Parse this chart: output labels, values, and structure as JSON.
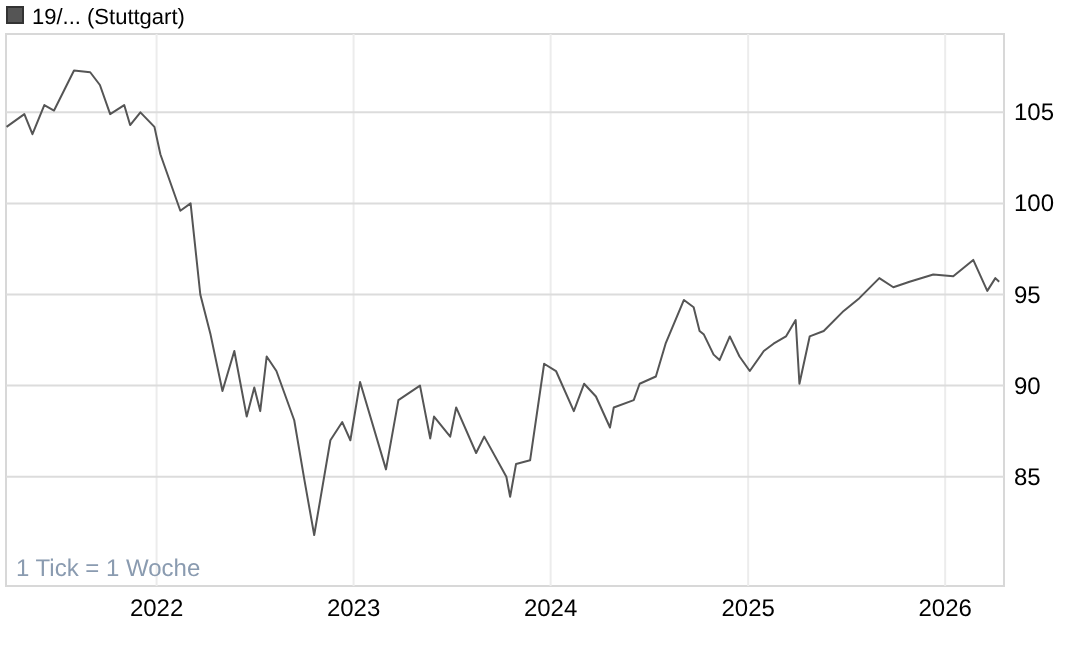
{
  "chart_data": {
    "type": "line",
    "annotations": [
      "1 Tick = 1 Woche"
    ],
    "legend": "top left",
    "grid": true,
    "marker": "none",
    "line_style": "solid",
    "xlim": [
      "2021-03-28",
      "2026-04-20"
    ],
    "xticks": [
      "2022",
      "2023",
      "2024",
      "2025",
      "2026"
    ],
    "ylim": [
      79,
      109.3
    ],
    "yticks": [
      85,
      90,
      95,
      100,
      105
    ],
    "series": [
      {
        "name": "19/... (Stuttgart)",
        "color": "#555555",
        "x": [
          "2021-03-29",
          "2021-05-01",
          "2021-05-16",
          "2021-06-07",
          "2021-06-25",
          "2021-08-01",
          "2021-08-31",
          "2021-09-18",
          "2021-10-07",
          "2021-11-02",
          "2021-11-13",
          "2021-12-02",
          "2021-12-28",
          "2022-01-08",
          "2022-02-14",
          "2022-03-05",
          "2022-03-23",
          "2022-04-11",
          "2022-05-03",
          "2022-05-25",
          "2022-06-17",
          "2022-07-01",
          "2022-07-12",
          "2022-07-24",
          "2022-08-11",
          "2022-09-13",
          "2022-10-02",
          "2022-10-20",
          "2022-10-31",
          "2022-11-19",
          "2022-12-11",
          "2022-12-26",
          "2023-01-13",
          "2023-03-02",
          "2023-03-25",
          "2023-05-04",
          "2023-05-23",
          "2023-05-30",
          "2023-06-29",
          "2023-07-10",
          "2023-08-16",
          "2023-08-31",
          "2023-10-11",
          "2023-10-18",
          "2023-10-29",
          "2023-11-24",
          "2023-12-20",
          "2024-01-11",
          "2024-02-13",
          "2024-03-03",
          "2024-03-25",
          "2024-04-20",
          "2024-04-27",
          "2024-06-03",
          "2024-06-14",
          "2024-07-14",
          "2024-08-01",
          "2024-09-04",
          "2024-09-22",
          "2024-10-03",
          "2024-10-11",
          "2024-10-29",
          "2024-11-09",
          "2024-11-28",
          "2024-12-16",
          "2025-01-04",
          "2025-01-30",
          "2025-02-17",
          "2025-03-12",
          "2025-03-30",
          "2025-04-06",
          "2025-04-25",
          "2025-05-21",
          "2025-06-27",
          "2025-07-26",
          "2025-09-01",
          "2025-09-27",
          "2025-10-27",
          "2025-12-10",
          "2026-01-16",
          "2026-02-22",
          "2026-03-20",
          "2026-04-04",
          "2026-04-11"
        ],
        "values": [
          104.2,
          104.9,
          103.8,
          105.4,
          105.1,
          107.3,
          107.2,
          106.5,
          104.9,
          105.4,
          104.3,
          105,
          104.2,
          102.7,
          99.6,
          100,
          95,
          92.8,
          89.7,
          91.9,
          88.3,
          89.9,
          88.6,
          91.6,
          90.8,
          88.1,
          84.8,
          81.8,
          83.7,
          87,
          88,
          87,
          90.2,
          85.4,
          89.2,
          90,
          87.1,
          88.3,
          87.2,
          88.8,
          86.3,
          87.2,
          85,
          83.9,
          85.7,
          85.9,
          91.2,
          90.8,
          88.6,
          90.1,
          89.4,
          87.7,
          88.8,
          89.2,
          90.1,
          90.5,
          92.3,
          94.7,
          94.3,
          93,
          92.8,
          91.7,
          91.4,
          92.7,
          91.6,
          90.8,
          91.9,
          92.3,
          92.7,
          93.6,
          90.1,
          92.7,
          93,
          94.1,
          94.8,
          95.9,
          95.4,
          95.7,
          96.1,
          96,
          96.9,
          95.2,
          95.9,
          95.7
        ]
      }
    ]
  }
}
